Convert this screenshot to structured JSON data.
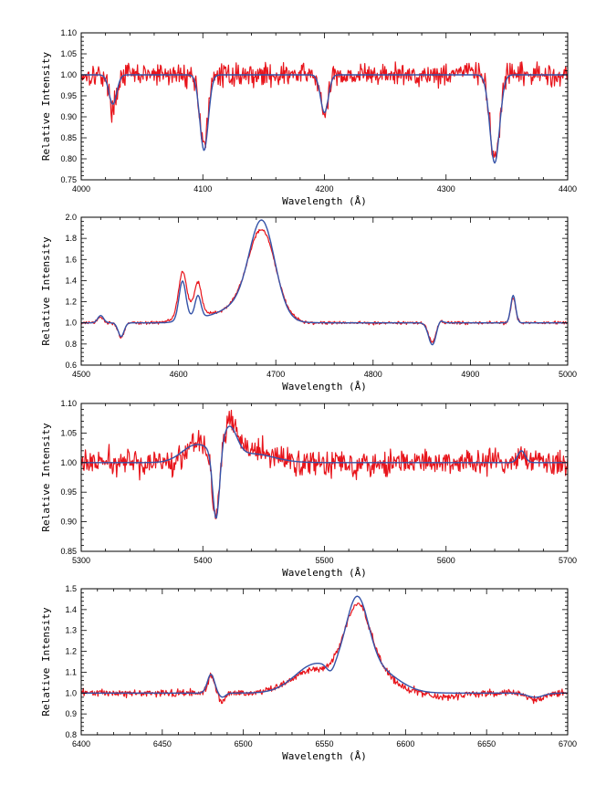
{
  "chart_data": [
    {
      "type": "line",
      "xlabel": "Wavelength (Å)",
      "ylabel": "Relative Intensity",
      "xlim": [
        4000,
        4400
      ],
      "ylim": [
        0.75,
        1.1
      ],
      "xticks": [
        4000,
        4100,
        4200,
        4300,
        4400
      ],
      "xtick_labels": [
        "4000",
        "4100",
        "4200",
        "4300",
        "4400"
      ],
      "yticks": [
        0.75,
        0.8,
        0.85,
        0.9,
        0.95,
        1.0,
        1.05,
        1.1
      ],
      "ytick_labels": [
        "0.75",
        "0.80",
        "0.85",
        "0.90",
        "0.95",
        "1.00",
        "1.05",
        "1.10"
      ],
      "series": [
        {
          "color": "#e8141b",
          "role": "observed",
          "noise": 0.022,
          "features": [
            [
              4026,
              -0.08,
              3
            ],
            [
              4101,
              -0.16,
              3.5
            ],
            [
              4200,
              -0.1,
              3
            ],
            [
              4340,
              -0.2,
              4
            ],
            [
              4315,
              0.01,
              8
            ]
          ]
        },
        {
          "color": "#3553a8",
          "role": "model",
          "noise": 0,
          "features": [
            [
              4026,
              -0.07,
              3.2
            ],
            [
              4101,
              -0.18,
              3.5
            ],
            [
              4200,
              -0.09,
              3.2
            ],
            [
              4340,
              -0.21,
              4
            ]
          ]
        }
      ],
      "grid": false,
      "legend": "none"
    },
    {
      "type": "line",
      "xlabel": "Wavelength (Å)",
      "ylabel": "Relative Intensity",
      "xlim": [
        4500,
        5000
      ],
      "ylim": [
        0.6,
        2.0
      ],
      "xticks": [
        4500,
        4600,
        4700,
        4800,
        4900,
        5000
      ],
      "xtick_labels": [
        "4500",
        "4600",
        "4700",
        "4800",
        "4900",
        "5000"
      ],
      "yticks": [
        0.6,
        0.8,
        1.0,
        1.2,
        1.4,
        1.6,
        1.8,
        2.0
      ],
      "ytick_labels": [
        "0.6",
        "0.8",
        "1.0",
        "1.2",
        "1.4",
        "1.6",
        "1.8",
        "2.0"
      ],
      "series": [
        {
          "color": "#e8141b",
          "role": "observed",
          "noise": 0.012,
          "features": [
            [
              4520,
              0.05,
              3
            ],
            [
              4541,
              -0.14,
              3
            ],
            [
              4604,
              0.38,
              4
            ],
            [
              4620,
              0.26,
              3.5
            ],
            [
              4612,
              0.12,
              12
            ],
            [
              4686,
              0.78,
              14
            ],
            [
              4665,
              0.15,
              25
            ],
            [
              4861,
              -0.18,
              4
            ],
            [
              4868,
              0.03,
              3
            ],
            [
              4944,
              0.24,
              2.5
            ]
          ]
        },
        {
          "color": "#3553a8",
          "role": "model",
          "noise": 0,
          "features": [
            [
              4520,
              0.07,
              3
            ],
            [
              4541,
              -0.13,
              3
            ],
            [
              4604,
              0.36,
              3.5
            ],
            [
              4620,
              0.2,
              3
            ],
            [
              4612,
              0.04,
              10
            ],
            [
              4686,
              0.86,
              13
            ],
            [
              4665,
              0.16,
              25
            ],
            [
              4861,
              -0.21,
              4
            ],
            [
              4868,
              0.04,
              3
            ],
            [
              4944,
              0.26,
              2.5
            ]
          ]
        }
      ],
      "grid": false,
      "legend": "none"
    },
    {
      "type": "line",
      "xlabel": "Wavelength (Å)",
      "ylabel": "Relative Intensity",
      "xlim": [
        5300,
        5700
      ],
      "ylim": [
        0.85,
        1.1
      ],
      "xticks": [
        5300,
        5400,
        5500,
        5600,
        5700
      ],
      "xtick_labels": [
        "5300",
        "5400",
        "5500",
        "5600",
        "5700"
      ],
      "yticks": [
        0.85,
        0.9,
        0.95,
        1.0,
        1.05,
        1.1
      ],
      "ytick_labels": [
        "0.85",
        "0.90",
        "0.95",
        "1.00",
        "1.05",
        "1.10"
      ],
      "series": [
        {
          "color": "#e8141b",
          "role": "observed",
          "noise": 0.018,
          "features": [
            [
              5395,
              0.04,
              8
            ],
            [
              5411,
              -0.11,
              3
            ],
            [
              5422,
              0.06,
              6
            ],
            [
              5440,
              0.02,
              15
            ],
            [
              5662,
              0.02,
              3
            ]
          ]
        },
        {
          "color": "#3553a8",
          "role": "model",
          "noise": 0,
          "features": [
            [
              5395,
              0.03,
              12
            ],
            [
              5411,
              -0.12,
              2.8
            ],
            [
              5422,
              0.05,
              6
            ],
            [
              5440,
              0.015,
              18
            ],
            [
              5662,
              0.02,
              3
            ]
          ]
        }
      ],
      "grid": false,
      "legend": "none"
    },
    {
      "type": "line",
      "xlabel": "Wavelength (Å)",
      "ylabel": "Relative Intensity",
      "xlim": [
        6400,
        6700
      ],
      "ylim": [
        0.8,
        1.5
      ],
      "xticks": [
        6400,
        6450,
        6500,
        6550,
        6600,
        6650,
        6700
      ],
      "xtick_labels": [
        "6400",
        "6450",
        "6500",
        "6550",
        "6600",
        "6650",
        "6700"
      ],
      "yticks": [
        0.8,
        0.9,
        1.0,
        1.1,
        1.2,
        1.3,
        1.4,
        1.5
      ],
      "ytick_labels": [
        "0.8",
        "0.9",
        "1.0",
        "1.1",
        "1.2",
        "1.3",
        "1.4",
        "1.5"
      ],
      "series": [
        {
          "color": "#e8141b",
          "role": "observed",
          "noise": 0.014,
          "features": [
            [
              6480,
              0.08,
              2
            ],
            [
              6487,
              -0.04,
              2
            ],
            [
              6545,
              0.11,
              15
            ],
            [
              6570,
              0.33,
              8
            ],
            [
              6580,
              0.1,
              12
            ],
            [
              6625,
              -0.02,
              8
            ],
            [
              6680,
              -0.03,
              5
            ]
          ]
        },
        {
          "color": "#3553a8",
          "role": "model",
          "noise": 0,
          "features": [
            [
              6480,
              0.09,
              2.2
            ],
            [
              6487,
              -0.02,
              2
            ],
            [
              6545,
              0.14,
              13
            ],
            [
              6554,
              -0.04,
              2.5
            ],
            [
              6570,
              0.37,
              7
            ],
            [
              6582,
              0.11,
              13
            ],
            [
              6680,
              -0.02,
              5
            ]
          ]
        }
      ],
      "grid": false,
      "legend": "none"
    }
  ]
}
